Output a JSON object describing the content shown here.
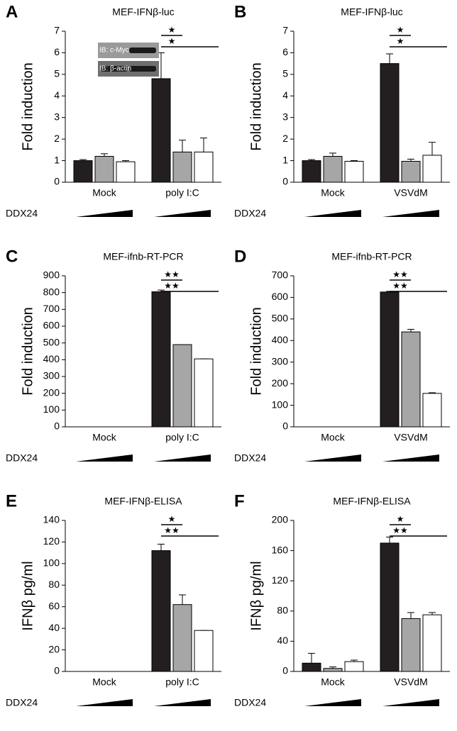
{
  "chart_data": [
    {
      "type": "bar",
      "panel": "A",
      "title": "MEF-IFNβ-luc",
      "y_label": "Fold induction",
      "treatment_label": "DDX24",
      "categories": [
        "Mock",
        "poly I:C"
      ],
      "series": [
        {
          "color": "#231f20",
          "values": [
            1.0,
            4.8
          ],
          "errors": [
            0.05,
            1.2
          ]
        },
        {
          "color": "#a6a6a6",
          "values": [
            1.2,
            1.4
          ],
          "errors": [
            0.12,
            0.55
          ]
        },
        {
          "color": "#ffffff",
          "values": [
            0.95,
            1.4
          ],
          "errors": [
            0.05,
            0.65
          ]
        }
      ],
      "ylim": [
        0,
        7
      ],
      "yticks": [
        0,
        1,
        2,
        3,
        4,
        5,
        6,
        7
      ],
      "significance": [
        "★",
        "★"
      ],
      "inset_labels": [
        "IB: c-Myc",
        "IB: β-actin"
      ]
    },
    {
      "type": "bar",
      "panel": "B",
      "title": "MEF-IFNβ-luc",
      "y_label": "Fold induction",
      "treatment_label": "DDX24",
      "categories": [
        "Mock",
        "VSVdM"
      ],
      "series": [
        {
          "color": "#231f20",
          "values": [
            1.0,
            5.5
          ],
          "errors": [
            0.05,
            0.45
          ]
        },
        {
          "color": "#a6a6a6",
          "values": [
            1.2,
            0.97
          ],
          "errors": [
            0.15,
            0.1
          ]
        },
        {
          "color": "#ffffff",
          "values": [
            0.97,
            1.25
          ],
          "errors": [
            0.03,
            0.6
          ]
        }
      ],
      "ylim": [
        0,
        7
      ],
      "yticks": [
        0,
        1,
        2,
        3,
        4,
        5,
        6,
        7
      ],
      "significance": [
        "★",
        "★"
      ]
    },
    {
      "type": "bar",
      "panel": "C",
      "title": "MEF-ifnb-RT-PCR",
      "y_label": "Fold induction",
      "treatment_label": "DDX24",
      "categories": [
        "Mock",
        "poly I:C"
      ],
      "series": [
        {
          "color": "#231f20",
          "values": [
            0,
            805
          ],
          "errors": [
            0,
            10
          ]
        },
        {
          "color": "#a6a6a6",
          "values": [
            0,
            490
          ],
          "errors": [
            0,
            0
          ]
        },
        {
          "color": "#ffffff",
          "values": [
            0,
            405
          ],
          "errors": [
            0,
            0
          ]
        }
      ],
      "ylim": [
        0,
        900
      ],
      "yticks": [
        0,
        100,
        200,
        300,
        400,
        500,
        600,
        700,
        800,
        900
      ],
      "significance": [
        "★★",
        "★★"
      ]
    },
    {
      "type": "bar",
      "panel": "D",
      "title": "MEF-ifnb-RT-PCR",
      "y_label": "Fold induction",
      "treatment_label": "DDX24",
      "categories": [
        "Mock",
        "VSVdM"
      ],
      "series": [
        {
          "color": "#231f20",
          "values": [
            0,
            625
          ],
          "errors": [
            0,
            3
          ]
        },
        {
          "color": "#a6a6a6",
          "values": [
            0,
            440
          ],
          "errors": [
            0,
            12
          ]
        },
        {
          "color": "#ffffff",
          "values": [
            0,
            155
          ],
          "errors": [
            0,
            3
          ]
        }
      ],
      "ylim": [
        0,
        700
      ],
      "yticks": [
        0,
        100,
        200,
        300,
        400,
        500,
        600,
        700
      ],
      "significance": [
        "★★",
        "★★"
      ]
    },
    {
      "type": "bar",
      "panel": "E",
      "title": "MEF-IFNβ-ELISA",
      "y_label": "IFNβ pg/ml",
      "treatment_label": "DDX24",
      "categories": [
        "Mock",
        "poly I:C"
      ],
      "series": [
        {
          "color": "#231f20",
          "values": [
            0,
            112
          ],
          "errors": [
            0,
            6
          ]
        },
        {
          "color": "#a6a6a6",
          "values": [
            0,
            62
          ],
          "errors": [
            0,
            9
          ]
        },
        {
          "color": "#ffffff",
          "values": [
            0,
            38
          ],
          "errors": [
            0,
            0
          ]
        }
      ],
      "ylim": [
        0,
        140
      ],
      "yticks": [
        0,
        20,
        40,
        60,
        80,
        100,
        120,
        140
      ],
      "significance": [
        "★",
        "★★"
      ]
    },
    {
      "type": "bar",
      "panel": "F",
      "title": "MEF-IFNβ-ELISA",
      "y_label": "IFNβ pg/ml",
      "treatment_label": "DDX24",
      "categories": [
        "Mock",
        "VSVdM"
      ],
      "series": [
        {
          "color": "#231f20",
          "values": [
            11,
            170
          ],
          "errors": [
            13,
            8
          ]
        },
        {
          "color": "#a6a6a6",
          "values": [
            4,
            70
          ],
          "errors": [
            2,
            8
          ]
        },
        {
          "color": "#ffffff",
          "values": [
            13,
            75
          ],
          "errors": [
            2,
            3
          ]
        }
      ],
      "ylim": [
        0,
        200
      ],
      "yticks": [
        0,
        40,
        80,
        120,
        160,
        200
      ],
      "significance": [
        "★",
        "★★"
      ]
    }
  ]
}
